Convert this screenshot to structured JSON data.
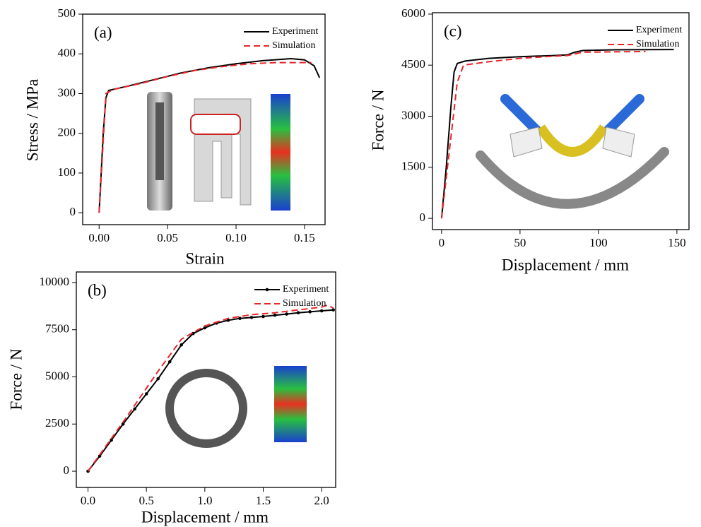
{
  "chart_data": [
    {
      "type": "line",
      "title": "(a)",
      "xlabel": "Strain",
      "ylabel": "Stress / MPa",
      "xlim": [
        -0.012,
        0.165
      ],
      "ylim": [
        -30,
        500
      ],
      "xticks": [
        {
          "value": 0,
          "label": "0.00"
        },
        0.05,
        {
          "value": 0.1,
          "label": "0.10"
        },
        0.15
      ],
      "yticks": [
        0,
        100,
        200,
        300,
        400,
        500
      ],
      "legend": "upper right",
      "series": [
        {
          "name": "Experiment",
          "color": "#000000",
          "linestyle": "solid",
          "x": [
            0,
            0.003,
            0.005,
            0.007,
            0.02,
            0.04,
            0.06,
            0.08,
            0.1,
            0.12,
            0.14,
            0.15,
            0.157,
            0.161
          ],
          "values": [
            0,
            200,
            290,
            308,
            318,
            335,
            352,
            365,
            375,
            383,
            388,
            385,
            370,
            340
          ]
        },
        {
          "name": "Simulation",
          "color": "#e8262a",
          "linestyle": "dashed",
          "x": [
            0,
            0.005,
            0.01,
            0.03,
            0.05,
            0.07,
            0.09,
            0.11,
            0.13,
            0.155
          ],
          "values": [
            0,
            300,
            310,
            325,
            343,
            358,
            368,
            375,
            378,
            378
          ]
        }
      ]
    },
    {
      "type": "line",
      "title": "(b)",
      "xlabel": "Displacement / mm",
      "ylabel": "Force / N",
      "xlim": [
        -0.1,
        2.12
      ],
      "ylim": [
        -860,
        10560
      ],
      "xticks": [
        {
          "value": 0,
          "label": "0.0"
        },
        0.5,
        {
          "value": 1,
          "label": "1.0"
        },
        1.5,
        {
          "value": 2,
          "label": "2.0"
        }
      ],
      "yticks": [
        0,
        2500,
        5000,
        7500,
        10000
      ],
      "legend": "upper right",
      "series": [
        {
          "name": "Experiment",
          "color": "#000000",
          "linestyle": "solid",
          "marker": "circle",
          "x": [
            0,
            0.1,
            0.2,
            0.3,
            0.4,
            0.5,
            0.6,
            0.7,
            0.8,
            0.9,
            1.0,
            1.1,
            1.2,
            1.3,
            1.4,
            1.5,
            1.6,
            1.7,
            1.8,
            1.9,
            2.0,
            2.1
          ],
          "values": [
            0,
            800,
            1650,
            2500,
            3300,
            4100,
            4900,
            5800,
            6700,
            7300,
            7600,
            7850,
            8000,
            8100,
            8150,
            8200,
            8270,
            8330,
            8400,
            8450,
            8500,
            8550
          ]
        },
        {
          "name": "Simulation",
          "color": "#e8262a",
          "linestyle": "dashed",
          "x": [
            0,
            0.3,
            0.6,
            0.8,
            1.0,
            1.2,
            1.4,
            1.6,
            1.8,
            2.0,
            2.05,
            2.1
          ],
          "values": [
            0,
            2600,
            5300,
            7000,
            7700,
            8100,
            8300,
            8400,
            8550,
            8700,
            8800,
            8650
          ]
        }
      ]
    },
    {
      "type": "line",
      "title": "(c)",
      "xlabel": "Displacement / mm",
      "ylabel": "Force / N",
      "xlim": [
        -5.8,
        157.7
      ],
      "ylim": [
        -330,
        6040
      ],
      "xticks": [
        0,
        50,
        100,
        150
      ],
      "yticks": [
        0,
        1500,
        3000,
        4500,
        6000
      ],
      "legend": "upper right",
      "series": [
        {
          "name": "Experiment",
          "color": "#000000",
          "linestyle": "solid",
          "x": [
            0,
            3,
            6,
            8,
            10,
            15,
            30,
            50,
            70,
            80,
            85,
            90,
            110,
            148
          ],
          "values": [
            0,
            1500,
            3300,
            4300,
            4550,
            4620,
            4700,
            4750,
            4780,
            4800,
            4880,
            4930,
            4950,
            4960
          ]
        },
        {
          "name": "Simulation",
          "color": "#e8262a",
          "linestyle": "dashed",
          "x": [
            0,
            5,
            10,
            14,
            30,
            50,
            70,
            80,
            90,
            130
          ],
          "values": [
            0,
            2000,
            4000,
            4500,
            4600,
            4700,
            4760,
            4780,
            4880,
            4900
          ]
        }
      ]
    }
  ]
}
